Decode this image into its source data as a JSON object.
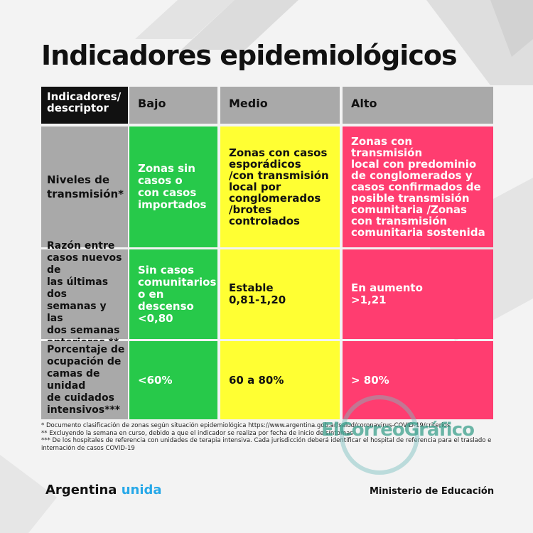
{
  "title": "Indicadores epidemiológicos",
  "table": {
    "headers": [
      "Indicadores/\ndescriptor",
      "Bajo",
      "Medio",
      "Alto"
    ],
    "rows": [
      {
        "label": "Niveles de\ntransmisión*",
        "bajo": "Zonas sin\ncasos o\ncon casos\nimportados",
        "medio": "Zonas con casos\nesporádicos\n/con transmisión\nlocal por\nconglomerados\n/brotes\ncontrolados",
        "alto": "Zonas con transmisión\nlocal con predominio\nde conglomerados y\ncasos confirmados de\nposible transmisión\ncomunitaria /Zonas\ncon transmisión\ncomunitaria sostenida"
      },
      {
        "label": "Razón entre\ncasos nuevos de\nlas últimas dos\nsemanas y las\ndos semanas\nanteriores **",
        "bajo": "Sin casos\ncomunitarios\no en\ndescenso\n<0,80",
        "medio": "Estable\n0,81-1,20",
        "alto": "En aumento\n>1,21"
      },
      {
        "label": "Porcentaje de\nocupación de\ncamas de unidad\nde cuidados\nintensivos***",
        "bajo": "<60%",
        "medio": "60 a 80%",
        "alto": "> 80%"
      }
    ]
  },
  "footnotes": [
    "* Documento clasificación de zonas según situación epidemiológica https://www.argentina.gob.ar/salud/coronavirus-COVID-19/criterios",
    "** Excluyendo la semana en curso, debido a que el indicador se realiza por fecha de inicio de síntomas",
    "*** De los hospitales de referencia con unidades de terapia intensiva. Cada jurisdicción deberá identificar el hospital de referencia para el traslado e",
    "internación de casos COVID-19"
  ],
  "watermark": "ElCorreoGráfico",
  "footer": {
    "brand_main": "Argentina",
    "brand_accent": "unida",
    "ministry": "Ministerio de Educación"
  },
  "colors": {
    "background": "#f3f3f3",
    "header_gray": "#a9a9a9",
    "bajo_green": "#27c94a",
    "medio_yellow": "#ffff33",
    "alto_pink": "#ff3d70",
    "brand_blue": "#26a8e8"
  }
}
